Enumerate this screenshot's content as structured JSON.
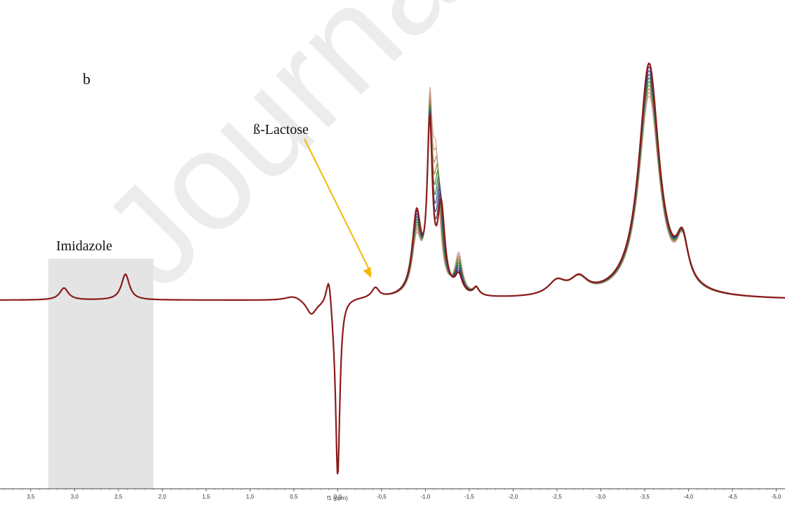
{
  "panel_label": "b",
  "watermark": "Journal Pre-proof",
  "chart_data": {
    "type": "line",
    "title": "",
    "xlabel": "f1 (ppm)",
    "ylabel": "",
    "xlim": [
      3.85,
      -5.1
    ],
    "x_reversed": true,
    "ylim": [
      -1.05,
      1.25
    ],
    "grid": false,
    "legend": "none",
    "ticks": [
      "3,5",
      "3,0",
      "2,5",
      "2,0",
      "1,5",
      "1,0",
      "0,5",
      "0,0",
      "-0,5",
      "-1,0",
      "-1,5",
      "-2,0",
      "-2,5",
      "-3,0",
      "-3,5",
      "-4,0",
      "-4,5",
      "-5,0"
    ],
    "tick_values": [
      3.5,
      3.0,
      2.5,
      2.0,
      1.5,
      1.0,
      0.5,
      0.0,
      -0.5,
      -1.0,
      -1.5,
      -2.0,
      -2.5,
      -3.0,
      -3.5,
      -4.0,
      -4.5,
      -5.0
    ],
    "series_colors": [
      "#d4a69f",
      "#c8988e",
      "#b5866e",
      "#8f8a3a",
      "#3f8f2f",
      "#2f7a5a",
      "#2e5c7a",
      "#3b3f86",
      "#4a2a70",
      "#8b1a1a"
    ],
    "highlight": {
      "label": "Imidazole",
      "x_from": 3.3,
      "x_to": 2.1,
      "color": "#e4e4e4"
    },
    "annotations": [
      {
        "label": "ß-Lactose",
        "x": -0.43,
        "y": 0.07,
        "arrow_color": "#f2b705"
      }
    ],
    "peaks": [
      {
        "x": 3.12,
        "height": 0.06,
        "width": 0.06,
        "label": "Imidazole"
      },
      {
        "x": 2.42,
        "height": 0.13,
        "width": 0.055,
        "label": "Imidazole"
      },
      {
        "x": 0.5,
        "height": 0.025,
        "width": 0.12
      },
      {
        "x": 0.3,
        "height": -0.07,
        "width": 0.07
      },
      {
        "x": 0.1,
        "height": 0.18,
        "width": 0.04
      },
      {
        "x": 0.0,
        "height": -0.95,
        "width": 0.03
      },
      {
        "x": -0.43,
        "height": 0.05,
        "width": 0.05,
        "label": "ß-Lactose"
      },
      {
        "x": -0.9,
        "height": 0.4,
        "width": 0.06
      },
      {
        "x": -1.05,
        "height": 0.82,
        "width": 0.035
      },
      {
        "x": -1.18,
        "height": 0.5,
        "width": 0.05
      },
      {
        "x": -1.38,
        "height": 0.2,
        "width": 0.05
      },
      {
        "x": -1.58,
        "height": 0.04,
        "width": 0.04
      },
      {
        "x": -2.5,
        "height": 0.07,
        "width": 0.12
      },
      {
        "x": -2.75,
        "height": 0.08,
        "width": 0.12
      },
      {
        "x": -3.55,
        "height": 1.18,
        "width": 0.14
      },
      {
        "x": -3.93,
        "height": 0.22,
        "width": 0.08
      }
    ]
  }
}
